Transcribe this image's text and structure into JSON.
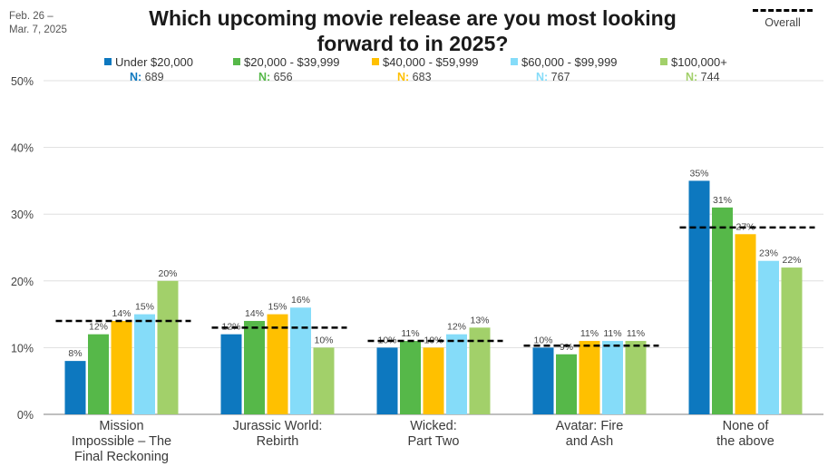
{
  "header": {
    "date_line1": "Feb. 26 –",
    "date_line2": "Mar. 7, 2025",
    "title_line1": "Which upcoming movie release are you most looking",
    "title_line2": "forward to in 2025?",
    "overall_label": "Overall"
  },
  "colors": {
    "series": [
      "#0d78bf",
      "#56b849",
      "#ffc000",
      "#85dcf9",
      "#a2d06a"
    ],
    "n_label": [
      "#0d78bf",
      "#56b849",
      "#ffc000",
      "#85dcf9",
      "#a2d06a"
    ],
    "overall_line": "#000000",
    "grid": "#d9d9d9",
    "axis": "#7f7f7f"
  },
  "chart_data": {
    "type": "bar",
    "categories": [
      [
        "Mission",
        "Impossible – The",
        "Final Reckoning"
      ],
      [
        "Jurassic World:",
        "Rebirth"
      ],
      [
        "Wicked:",
        "Part Two"
      ],
      [
        "Avatar: Fire",
        "and Ash"
      ],
      [
        "None of",
        "the above"
      ]
    ],
    "series": [
      {
        "name": "Under $20,000",
        "n_prefix": "N:",
        "n_value": "689",
        "values": [
          8,
          12,
          10,
          10,
          35
        ],
        "labels": [
          "8%",
          "12%",
          "10%",
          "10%",
          "35%"
        ]
      },
      {
        "name": "$20,000 - $39,999",
        "n_prefix": "N:",
        "n_value": "656",
        "values": [
          12,
          14,
          11,
          9,
          31
        ],
        "labels": [
          "12%",
          "14%",
          "11%",
          "9%",
          "31%"
        ]
      },
      {
        "name": "$40,000 - $59,999",
        "n_prefix": "N:",
        "n_value": "683",
        "values": [
          14,
          15,
          10,
          11,
          27
        ],
        "labels": [
          "14%",
          "15%",
          "10%",
          "11%",
          "27%"
        ]
      },
      {
        "name": "$60,000 - $99,999",
        "n_prefix": "N:",
        "n_value": "767",
        "values": [
          15,
          16,
          12,
          11,
          23
        ],
        "labels": [
          "15%",
          "16%",
          "12%",
          "11%",
          "23%"
        ]
      },
      {
        "name": "$100,000+",
        "n_prefix": "N:",
        "n_value": "744",
        "values": [
          20,
          10,
          13,
          11,
          22
        ],
        "labels": [
          "20%",
          "10%",
          "13%",
          "11%",
          "22%"
        ]
      }
    ],
    "overall": [
      14,
      13,
      11,
      10.3,
      28
    ],
    "y_ticks": [
      "0%",
      "10%",
      "20%",
      "30%",
      "40%",
      "50%"
    ],
    "ylim": [
      0,
      50
    ],
    "grid": true,
    "legend_position": "top"
  }
}
